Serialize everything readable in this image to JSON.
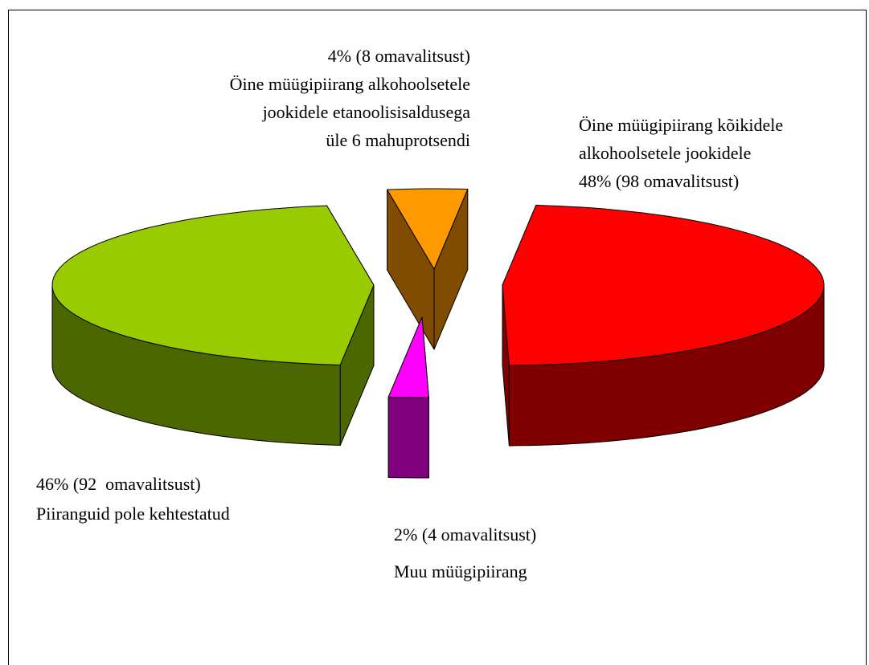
{
  "chart_data": {
    "type": "pie3d",
    "categories": [
      [
        "Öine müügipiirang kõikidele",
        "alkohoolsetele jookidele"
      ],
      [
        "Muu müügipiirang"
      ],
      [
        "Piiranguid pole kehtestatud"
      ],
      [
        "Öine müügipiirang alkohoolsetele",
        "jookidele etanoolisisaldusega",
        "üle 6 mahuprotsendi"
      ]
    ],
    "values": [
      48,
      2,
      46,
      4
    ],
    "value_labels": [
      "48% (98 omavalitsust)",
      "2% (4 omavalitsust)",
      "46% (92  omavalitsust)",
      "4% (8 omavalitsust)"
    ],
    "colors": [
      "#ff0000",
      "#ff00ff",
      "#99cc00",
      "#ff9900"
    ],
    "side_colors": [
      "#800000",
      "#800080",
      "#4c6600",
      "#7f4c00"
    ]
  }
}
